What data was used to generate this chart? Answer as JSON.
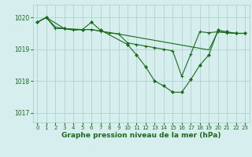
{
  "background_color": "#d6eeee",
  "grid_color": "#aacccc",
  "line_color": "#1a6b1a",
  "xlabel": "Graphe pression niveau de la mer (hPa)",
  "xlabel_fontsize": 6.5,
  "ylim": [
    1016.7,
    1020.4
  ],
  "xlim": [
    -0.5,
    23.5
  ],
  "yticks": [
    1017,
    1018,
    1019,
    1020
  ],
  "xticks": [
    0,
    1,
    2,
    3,
    4,
    5,
    6,
    7,
    8,
    9,
    10,
    11,
    12,
    13,
    14,
    15,
    16,
    17,
    18,
    19,
    20,
    21,
    22,
    23
  ],
  "series1_x": [
    0,
    1,
    2,
    3,
    4,
    5,
    6,
    7,
    8,
    9,
    10,
    11,
    12,
    13,
    14,
    15,
    16,
    17,
    18,
    19,
    20,
    21,
    22,
    23
  ],
  "series1_y": [
    1019.85,
    1020.0,
    1019.7,
    1019.65,
    1019.62,
    1019.62,
    1019.62,
    1019.57,
    1019.52,
    1019.48,
    1019.43,
    1019.38,
    1019.33,
    1019.28,
    1019.23,
    1019.18,
    1019.13,
    1019.08,
    1019.03,
    1018.98,
    1019.55,
    1019.52,
    1019.5,
    1019.5
  ],
  "series2_x": [
    0,
    1,
    3,
    5,
    6,
    7,
    10,
    11,
    12,
    13,
    14,
    15,
    16,
    17,
    18,
    19,
    20,
    21,
    22,
    23
  ],
  "series2_y": [
    1019.85,
    1020.0,
    1019.65,
    1019.62,
    1019.85,
    1019.6,
    1019.15,
    1018.82,
    1018.45,
    1018.0,
    1017.85,
    1017.65,
    1017.65,
    1018.05,
    1018.5,
    1018.82,
    1019.6,
    1019.55,
    1019.5,
    1019.5
  ],
  "series3_x": [
    0,
    1,
    2,
    3,
    4,
    5,
    6,
    7,
    8,
    9,
    10,
    11,
    12,
    13,
    14,
    15,
    16,
    17,
    18,
    19,
    20,
    21,
    22,
    23
  ],
  "series3_y": [
    1019.85,
    1020.0,
    1019.65,
    1019.65,
    1019.6,
    1019.62,
    1019.62,
    1019.57,
    1019.52,
    1019.48,
    1019.2,
    1019.15,
    1019.1,
    1019.05,
    1019.0,
    1018.95,
    1018.15,
    1018.85,
    1019.55,
    1019.52,
    1019.55,
    1019.52,
    1019.5,
    1019.5
  ]
}
